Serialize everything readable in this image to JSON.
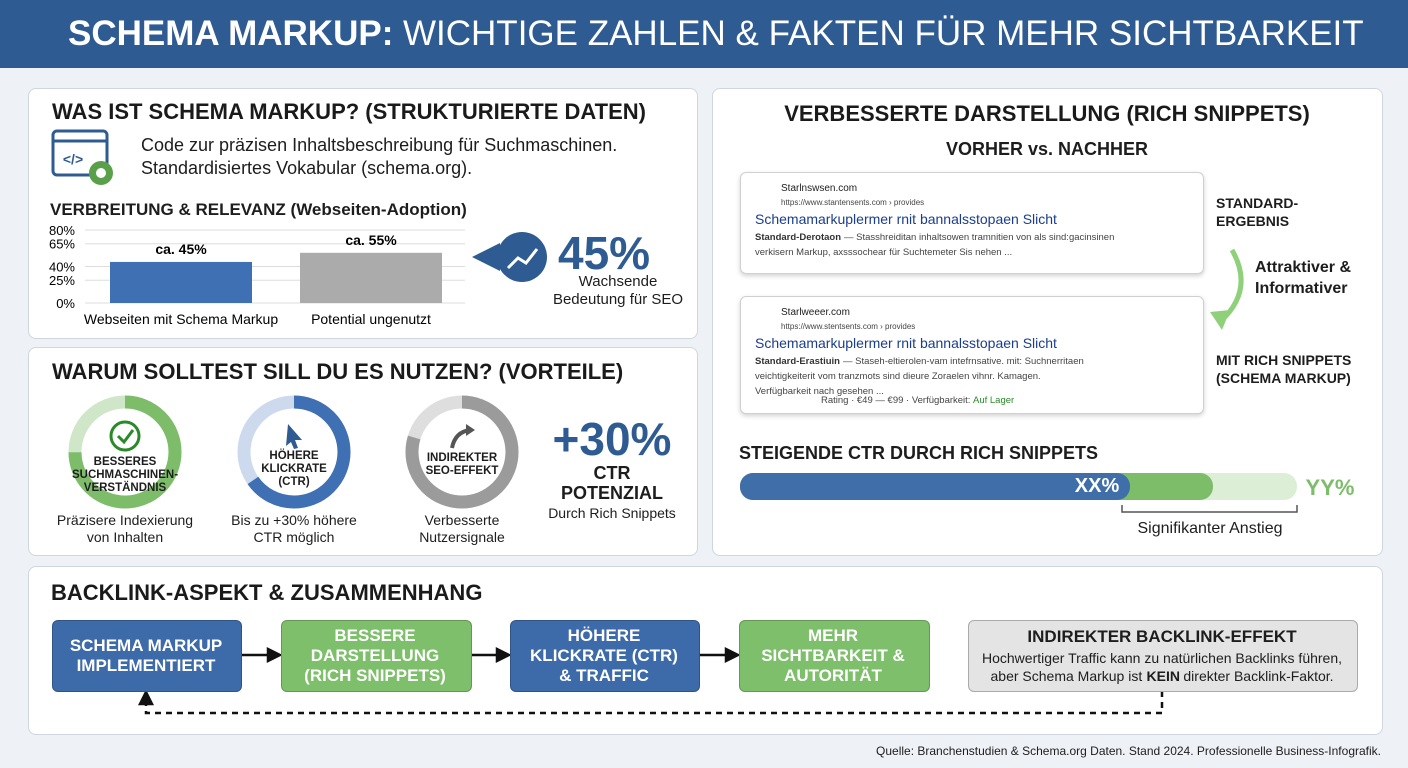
{
  "header": {
    "title_bold": "SCHEMA MARKUP:",
    "title_rest": "WICHTIGE ZAHLEN & FAKTEN FÜR MEHR SICHTBARKEIT"
  },
  "what": {
    "title": "WAS IST SCHEMA MARKUP? (STRUKTURIERTE DATEN)",
    "lines": [
      "Code zur präzisen Inhaltsbeschreibung für Suchmaschinen.",
      "Standardisiertes Vokabular (schema.org)."
    ]
  },
  "adoption": {
    "title": "VERBREITUNG & RELEVANZ (Webseiten-Adoption)",
    "categories": [
      "Webseiten mit Schema Markup",
      "Potential ungenutzt"
    ],
    "values": [
      45,
      55
    ],
    "value_labels": [
      "ca. 45%",
      "ca. 55%"
    ],
    "colors": [
      "#3f70b3",
      "#ababab"
    ],
    "ylim": [
      0,
      80
    ],
    "yticks": [
      {
        "value": 0,
        "label": "0%"
      },
      {
        "value": 25,
        "label": "25%"
      },
      {
        "value": 40,
        "label": "40%"
      },
      {
        "value": 65,
        "label": "65%"
      },
      {
        "value": 80,
        "label": "80%"
      }
    ],
    "grid": true,
    "stat": "45%",
    "stat_caption": [
      "Wachsende",
      "Bedeutung für SEO"
    ]
  },
  "benefits": {
    "title": "WARUM SOLLTEST SILL DU ES NUTZEN? (VORTEILE)",
    "items": [
      {
        "label": [
          "BESSERES",
          "SUCHMASCHINEN-",
          "VERSTÄNDNIS"
        ],
        "caption": [
          "Präzisere Indexierung",
          "von Inhalten"
        ]
      },
      {
        "label": [
          "HÖHERE",
          "KLICKRATE",
          "(CTR)"
        ],
        "caption": [
          "Bis zu +30% höhere",
          "CTR möglich"
        ]
      },
      {
        "label": [
          "INDIREKTER",
          "SEO-EFFEKT"
        ],
        "caption": [
          "Verbesserte",
          "Nutzersignale"
        ]
      }
    ],
    "stat": "+30%",
    "stat_lines": [
      "CTR",
      "POTENZIAL"
    ],
    "stat_caption": "Durch Rich Snippets"
  },
  "snippets": {
    "title": "VERBESSERTE DARSTELLUNG (RICH SNIPPETS)",
    "subtitle": "VORHER vs. NACHHER",
    "before": {
      "site": "Starlnswsen.com",
      "url": "https://www.stantensents.com › provides",
      "headline": "Schemamarkuplermer rnit bannalsstopaen Slicht",
      "desc_bold": "Standard-Derotaon",
      "desc": [
        "— Stasshreiditan inhaltsowen tramnitien von als sind:gacinsinen",
        "verkisern Markup, axsssochear für Suchtemeter Sis nehen ..."
      ]
    },
    "after": {
      "site": "Starlweeer.com",
      "url": "https://www.stentsents.com › provides",
      "headline": "Schemamarkuplermer rnit bannalsstopaen Slicht",
      "desc_bold": "Standard-Erastiuin",
      "desc": [
        "— Staseh-eltierolen-vam intefrnsative. mit: Suchnerritaen",
        "veichtigkeiterit vom tranzmots sind dieure Zoraelen vihnr. Kamagen.",
        "Verfügbarkeit nach gesehen ..."
      ],
      "rating": "Rating · €49 — €99 · Verfügbarkeit:",
      "stock": "Auf Lager"
    },
    "label_before": [
      "STANDARD-",
      "ERGEBNIS"
    ],
    "label_mid": [
      "Attraktiver &",
      "Informativer"
    ],
    "label_after": [
      "MIT RICH SNIPPETS",
      "(SCHEMA MARKUP)"
    ]
  },
  "ctr": {
    "title": "STEIGENDE CTR DURCH RICH SNIPPETS",
    "left": "XX%",
    "right": "YY%",
    "note": "Signifikanter Anstieg"
  },
  "backlink": {
    "title": "BACKLINK-ASPEKT & ZUSAMMENHANG",
    "steps": [
      [
        "SCHEMA MARKUP",
        "IMPLEMENTIERT"
      ],
      [
        "BESSERE",
        "DARSTELLUNG",
        "(RICH SNIPPETS)"
      ],
      [
        "HÖHERE",
        "KLICKRATE (CTR)",
        "& TRAFFIC"
      ],
      [
        "MEHR",
        "SICHTBARKEIT &",
        "AUTORITÄT"
      ]
    ],
    "box_title": "INDIREKTER BACKLINK-EFFEKT",
    "box_line1": "Hochwertiger Traffic kann zu natürlichen Backlinks führen,",
    "box_line2a": "aber Schema Markup ist ",
    "box_line2b": "KEIN",
    "box_line2c": " direkter Backlink-Faktor."
  },
  "footer": "Quelle: Branchenstudien & Schema.org Daten. Stand 2024. Professionelle Business-Infografik."
}
